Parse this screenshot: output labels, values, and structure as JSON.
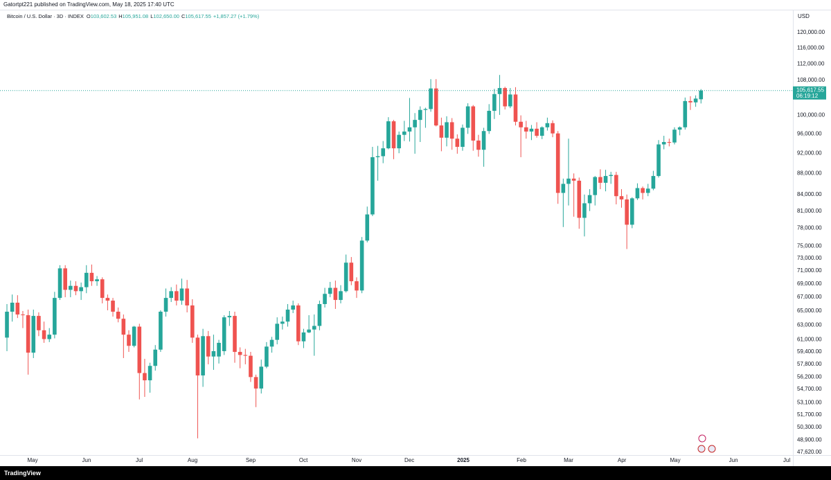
{
  "header": {
    "published": "Gatortpt221 published on TradingView.com, May 18, 2025 17:40 UTC"
  },
  "footer": {
    "brand": "TradingView"
  },
  "chart_data": {
    "type": "candlestick",
    "symbol": "Bitcoin / U.S. Dollar · 3D · INDEX",
    "legend": [
      {
        "key": "O",
        "value": "103,602.53"
      },
      {
        "key": "H",
        "value": "105,951.08"
      },
      {
        "key": "L",
        "value": "102,650.00"
      },
      {
        "key": "C",
        "value": "105,617.55"
      }
    ],
    "change": "+1,857.27 (+1.79%)",
    "currency": "USD",
    "last_price_label": "105,617.55",
    "countdown": "06:19:12",
    "up_color": "#26a69a",
    "down_color": "#ef5350",
    "log_scale": true,
    "grid": false,
    "open": [
      61300,
      64900,
      66200,
      64500,
      64400,
      59300,
      64300,
      62300,
      61100,
      61700,
      66900,
      71400,
      68100,
      68700,
      67900,
      68500,
      70700,
      69400,
      69700,
      66900,
      66500,
      64900,
      63900,
      61700,
      60200,
      62800,
      56700,
      55800,
      57600,
      59700,
      64900,
      66900,
      67900,
      66500,
      68300,
      65800,
      61300,
      56400,
      61500,
      58800,
      58800,
      59500,
      64100,
      64300,
      59400,
      59000,
      58900,
      56200,
      54800,
      57500,
      60100,
      61000,
      63200,
      63500,
      65200,
      65800,
      60800,
      62000,
      62400,
      62900,
      66000,
      67500,
      68400,
      66600,
      67900,
      72300,
      69400,
      68000,
      75900,
      80400,
      91200,
      91400,
      93000,
      98700,
      93000,
      95800,
      96500,
      97400,
      99000,
      101200,
      101400,
      106100,
      97800,
      95200,
      98500,
      95000,
      93300,
      97300,
      102000,
      94600,
      92700,
      96600,
      101000,
      104800,
      106200,
      102000,
      104700,
      98600,
      97400,
      96500,
      97100,
      95600,
      97400,
      98300,
      96100,
      84300,
      86000,
      87000,
      86600,
      79800,
      82400,
      83900,
      87300,
      86200,
      87500,
      87700,
      83700,
      83100,
      78600,
      83300,
      85200,
      84300,
      85100,
      87500,
      93800,
      94300,
      94200,
      96900,
      97400,
      103200,
      102900,
      103602.53
    ],
    "high": [
      66000,
      67400,
      67300,
      65000,
      65200,
      65200,
      64800,
      63500,
      62600,
      67800,
      71900,
      71900,
      69500,
      69400,
      69200,
      71900,
      72000,
      70200,
      70000,
      67400,
      66900,
      65500,
      64500,
      62300,
      62900,
      63200,
      58500,
      58000,
      60300,
      65100,
      68300,
      68500,
      68900,
      69800,
      69600,
      66700,
      61700,
      62500,
      62200,
      61700,
      61000,
      64400,
      65000,
      64900,
      60000,
      59800,
      59400,
      56500,
      58400,
      60700,
      61400,
      64100,
      64200,
      66000,
      66500,
      66100,
      62500,
      64400,
      64500,
      66500,
      68400,
      69300,
      69500,
      68800,
      73600,
      73200,
      70000,
      76500,
      81800,
      93300,
      93500,
      94500,
      99600,
      99000,
      96500,
      98800,
      103900,
      100500,
      102000,
      101700,
      108300,
      108300,
      99500,
      99800,
      99400,
      95900,
      98000,
      102700,
      102300,
      95800,
      97300,
      102500,
      106000,
      109300,
      106500,
      106200,
      106400,
      100000,
      98800,
      97900,
      98500,
      97600,
      99500,
      98900,
      96600,
      87000,
      95000,
      88000,
      87200,
      84000,
      85000,
      87500,
      88800,
      88700,
      88300,
      88300,
      85000,
      84000,
      83500,
      86100,
      85500,
      86000,
      88500,
      94700,
      95600,
      95000,
      97400,
      97600,
      104000,
      104300,
      104500,
      105951.08
    ],
    "low": [
      59500,
      63500,
      64000,
      62600,
      56500,
      58600,
      61500,
      60600,
      60700,
      61200,
      66600,
      67000,
      67000,
      67300,
      66600,
      67600,
      68700,
      68700,
      66100,
      65100,
      64200,
      63400,
      58600,
      59400,
      60000,
      53500,
      53800,
      54300,
      57000,
      59400,
      64200,
      66300,
      65800,
      65900,
      64800,
      60600,
      49100,
      55000,
      57800,
      57100,
      57900,
      59000,
      62900,
      58000,
      57300,
      57800,
      55600,
      52600,
      54200,
      57300,
      59300,
      60400,
      62400,
      62800,
      64700,
      60300,
      59900,
      61900,
      58900,
      62300,
      65500,
      67000,
      65300,
      66100,
      67700,
      68800,
      66900,
      67600,
      75600,
      80100,
      86600,
      90000,
      92800,
      90800,
      92000,
      94500,
      94400,
      91900,
      94300,
      97300,
      100800,
      97600,
      92400,
      93400,
      92700,
      91900,
      92500,
      96000,
      92500,
      91300,
      89300,
      96000,
      99200,
      100100,
      101300,
      101600,
      97800,
      91200,
      95000,
      94700,
      95200,
      94900,
      96700,
      95300,
      82300,
      78200,
      82000,
      80000,
      77900,
      76600,
      81000,
      82000,
      85000,
      84600,
      86000,
      82200,
      81600,
      74500,
      78000,
      83000,
      83100,
      83700,
      84800,
      87200,
      92800,
      93400,
      93800,
      95700,
      96900,
      101200,
      101900,
      102650
    ],
    "close": [
      64900,
      66200,
      64500,
      64400,
      59300,
      64300,
      62300,
      61100,
      61700,
      66900,
      71400,
      68100,
      68700,
      67900,
      68500,
      70700,
      69400,
      69700,
      66900,
      66500,
      64900,
      63900,
      61700,
      60200,
      62800,
      56700,
      55800,
      57600,
      59700,
      64900,
      66900,
      67900,
      66500,
      68300,
      65800,
      61300,
      56400,
      61500,
      58800,
      59500,
      60600,
      64100,
      64300,
      59400,
      59000,
      58900,
      56200,
      54800,
      57500,
      60100,
      61000,
      63200,
      63500,
      65200,
      65800,
      60800,
      62000,
      62400,
      62900,
      66000,
      67500,
      68400,
      66600,
      67900,
      72300,
      69400,
      68000,
      75900,
      80400,
      91200,
      91400,
      93000,
      98700,
      93000,
      95800,
      96500,
      97400,
      99000,
      101200,
      101400,
      106100,
      97800,
      95200,
      98500,
      95000,
      93300,
      97300,
      102000,
      94600,
      92700,
      96600,
      101000,
      104800,
      106200,
      102000,
      104700,
      98600,
      97400,
      96500,
      97100,
      95600,
      97400,
      98300,
      96100,
      84300,
      86000,
      87000,
      86600,
      79800,
      82400,
      83900,
      87300,
      86200,
      87500,
      87700,
      83700,
      83100,
      78600,
      83300,
      85200,
      84300,
      85100,
      87500,
      93800,
      94300,
      94200,
      96900,
      97400,
      103200,
      102900,
      103760,
      105617.55
    ],
    "xlim": [
      -1.31,
      148.35
    ],
    "xticks": [
      {
        "value": 4.84,
        "label": "May"
      },
      {
        "value": 15.03,
        "label": "Jun"
      },
      {
        "value": 24.97,
        "label": "Jul"
      },
      {
        "value": 35.03,
        "label": "Aug"
      },
      {
        "value": 46.0,
        "label": "Sep"
      },
      {
        "value": 55.95,
        "label": "Oct"
      },
      {
        "value": 66.0,
        "label": "Nov"
      },
      {
        "value": 75.95,
        "label": "Dec"
      },
      {
        "value": 86.14,
        "label": "2025"
      },
      {
        "value": 97.12,
        "label": "Feb"
      },
      {
        "value": 106.0,
        "label": "Mar"
      },
      {
        "value": 116.08,
        "label": "Apr"
      },
      {
        "value": 126.14,
        "label": "May"
      },
      {
        "value": 137.12,
        "label": "Jun"
      },
      {
        "value": 147.19,
        "label": "Jul"
      }
    ],
    "ylim": [
      47330,
      126000
    ],
    "yticks": [
      {
        "value": 47620,
        "label": "47,620.00"
      },
      {
        "value": 48900,
        "label": "48,900.00"
      },
      {
        "value": 50300,
        "label": "50,300.00"
      },
      {
        "value": 51700,
        "label": "51,700.00"
      },
      {
        "value": 53100,
        "label": "53,100.00"
      },
      {
        "value": 54700,
        "label": "54,700.00"
      },
      {
        "value": 56200,
        "label": "56,200.00"
      },
      {
        "value": 57800,
        "label": "57,800.00"
      },
      {
        "value": 59400,
        "label": "59,400.00"
      },
      {
        "value": 61000,
        "label": "61,000.00"
      },
      {
        "value": 63000,
        "label": "63,000.00"
      },
      {
        "value": 65000,
        "label": "65,000.00"
      },
      {
        "value": 67000,
        "label": "67,000.00"
      },
      {
        "value": 69000,
        "label": "69,000.00"
      },
      {
        "value": 71000,
        "label": "71,000.00"
      },
      {
        "value": 73000,
        "label": "73,000.00"
      },
      {
        "value": 75000,
        "label": "75,000.00"
      },
      {
        "value": 78000,
        "label": "78,000.00"
      },
      {
        "value": 81000,
        "label": "81,000.00"
      },
      {
        "value": 84000,
        "label": "84,000.00"
      },
      {
        "value": 88000,
        "label": "88,000.00"
      },
      {
        "value": 92000,
        "label": "92,000.00"
      },
      {
        "value": 96000,
        "label": "96,000.00"
      },
      {
        "value": 100000,
        "label": "100,000.00"
      },
      {
        "value": 108000,
        "label": "108,000.00"
      },
      {
        "value": 112000,
        "label": "112,000.00"
      },
      {
        "value": 116000,
        "label": "116,000.00"
      },
      {
        "value": 120000,
        "label": "120,000.00"
      }
    ]
  }
}
